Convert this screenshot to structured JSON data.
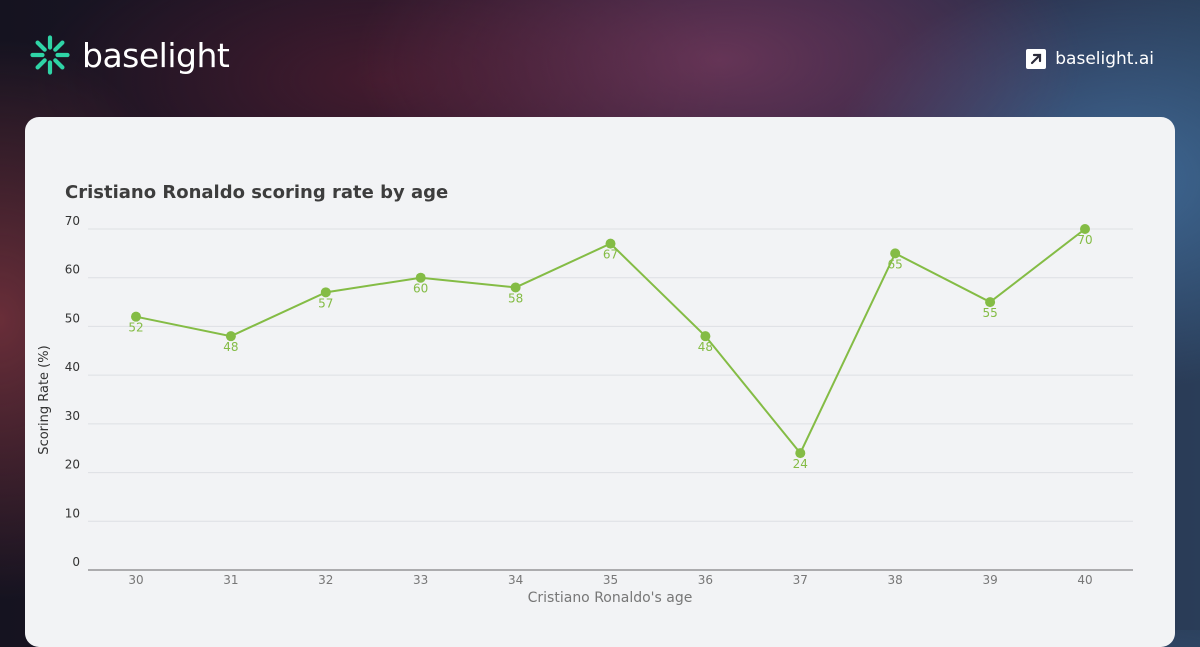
{
  "header": {
    "brand_name": "baselight",
    "site_link_label": "baselight.ai",
    "brand_color": "#2fd4a6"
  },
  "chart_data": {
    "type": "line",
    "title": "Cristiano Ronaldo scoring rate by age",
    "xlabel": "Cristiano Ronaldo's age",
    "ylabel": "Scoring Rate (%)",
    "x": [
      30,
      31,
      32,
      33,
      34,
      35,
      36,
      37,
      38,
      39,
      40
    ],
    "series": [
      {
        "values": [
          52,
          48,
          57,
          60,
          58,
          67,
          48,
          24,
          65,
          55,
          70
        ],
        "color": "#84bc45"
      }
    ],
    "ylim": [
      0,
      70
    ],
    "yticks": [
      0,
      10,
      20,
      30,
      40,
      50,
      60,
      70
    ],
    "grid": true,
    "data_labels": true
  }
}
